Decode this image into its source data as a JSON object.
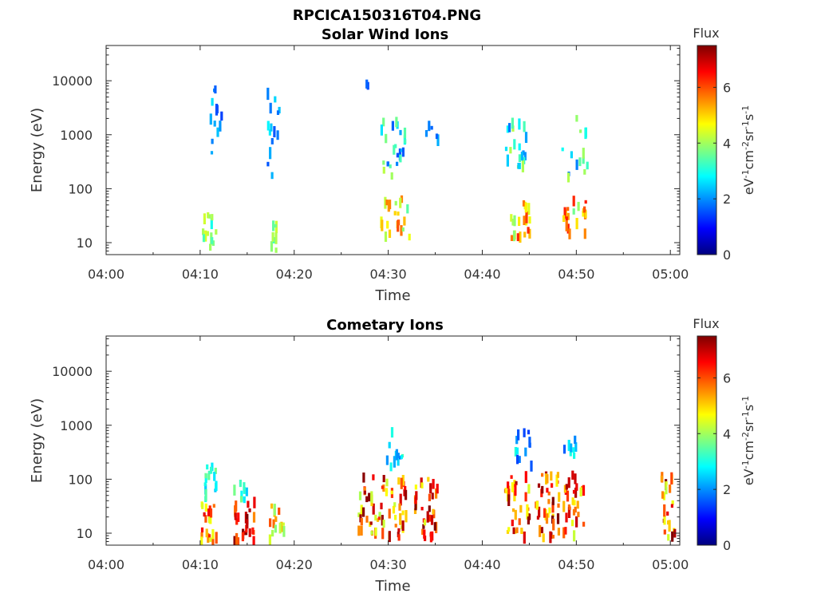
{
  "figure_title": "RPCICA150316T04.PNG",
  "colormap": [
    "#00007f",
    "#0000ff",
    "#007fff",
    "#00ffff",
    "#7fff7f",
    "#ffff00",
    "#ff7f00",
    "#ff0000",
    "#7f0000"
  ],
  "chart_data": [
    {
      "type": "heatmap",
      "title": "Solar Wind Ions",
      "xlabel": "Time",
      "ylabel": "Energy (eV)",
      "yscale": "log",
      "xlim_minutes": [
        0,
        61
      ],
      "ylim": [
        6,
        45000
      ],
      "x_tick_labels": [
        "04:00",
        "04:10",
        "04:20",
        "04:30",
        "04:40",
        "04:50",
        "05:00"
      ],
      "y_tick_labels": [
        "10",
        "100",
        "1000",
        "10000"
      ],
      "colorbar": {
        "title": "Flux",
        "label": "eV-1cm-2sr-1s-1",
        "range": [
          0,
          7.5
        ],
        "tick_labels": [
          "0",
          "2",
          "4",
          "6"
        ]
      },
      "grid": false,
      "clusters": [
        {
          "t": 10.8,
          "t_span": 1.6,
          "e_min": 7,
          "e_max": 40,
          "flux_min": 2.6,
          "flux_max": 4.6,
          "count": 14
        },
        {
          "t": 11.5,
          "t_span": 1.6,
          "e_min": 300,
          "e_max": 8000,
          "flux_min": 1.4,
          "flux_max": 2.6,
          "count": 12
        },
        {
          "t": 17.8,
          "t_span": 0.8,
          "e_min": 6,
          "e_max": 25,
          "flux_min": 3.2,
          "flux_max": 4.6,
          "count": 8
        },
        {
          "t": 17.8,
          "t_span": 1.8,
          "e_min": 170,
          "e_max": 9000,
          "flux_min": 1.4,
          "flux_max": 2.8,
          "count": 14
        },
        {
          "t": 27.6,
          "t_span": 0.4,
          "e_min": 8000,
          "e_max": 10000,
          "flux_min": 1.4,
          "flux_max": 1.8,
          "count": 2
        },
        {
          "t": 30.6,
          "t_span": 3.2,
          "e_min": 12,
          "e_max": 65,
          "flux_min": 3.4,
          "flux_max": 6.2,
          "count": 22
        },
        {
          "t": 30.4,
          "t_span": 2.6,
          "e_min": 150,
          "e_max": 1800,
          "flux_min": 1.5,
          "flux_max": 4.2,
          "count": 24
        },
        {
          "t": 34.6,
          "t_span": 1.4,
          "e_min": 700,
          "e_max": 3200,
          "flux_min": 1.6,
          "flux_max": 2.8,
          "count": 5
        },
        {
          "t": 43.8,
          "t_span": 2.4,
          "e_min": 12,
          "e_max": 60,
          "flux_min": 3.4,
          "flux_max": 6.4,
          "count": 20
        },
        {
          "t": 43.6,
          "t_span": 2.4,
          "e_min": 250,
          "e_max": 2000,
          "flux_min": 1.5,
          "flux_max": 4.4,
          "count": 22
        },
        {
          "t": 49.6,
          "t_span": 2.6,
          "e_min": 12,
          "e_max": 60,
          "flux_min": 3.6,
          "flux_max": 6.6,
          "count": 20
        },
        {
          "t": 49.8,
          "t_span": 2.8,
          "e_min": 150,
          "e_max": 2200,
          "flux_min": 1.6,
          "flux_max": 4.2,
          "count": 14
        }
      ]
    },
    {
      "type": "heatmap",
      "title": "Cometary Ions",
      "xlabel": "Time",
      "ylabel": "Energy (eV)",
      "yscale": "log",
      "xlim_minutes": [
        0,
        61
      ],
      "ylim": [
        6,
        45000
      ],
      "x_tick_labels": [
        "04:00",
        "04:10",
        "04:20",
        "04:30",
        "04:40",
        "04:50",
        "05:00"
      ],
      "y_tick_labels": [
        "10",
        "100",
        "1000",
        "10000"
      ],
      "colorbar": {
        "title": "Flux",
        "label": "eV-1cm-2sr-1s-1",
        "range": [
          0,
          7.5
        ],
        "tick_labels": [
          "0",
          "2",
          "4",
          "6"
        ]
      },
      "grid": false,
      "clusters": [
        {
          "t": 10.9,
          "t_span": 1.8,
          "e_min": 6,
          "e_max": 40,
          "flux_min": 4.4,
          "flux_max": 7.0,
          "count": 22
        },
        {
          "t": 10.9,
          "t_span": 1.4,
          "e_min": 40,
          "e_max": 200,
          "flux_min": 2.3,
          "flux_max": 3.8,
          "count": 16
        },
        {
          "t": 14.6,
          "t_span": 2.2,
          "e_min": 6,
          "e_max": 40,
          "flux_min": 5.4,
          "flux_max": 7.6,
          "count": 26
        },
        {
          "t": 14.3,
          "t_span": 1.6,
          "e_min": 40,
          "e_max": 90,
          "flux_min": 2.4,
          "flux_max": 3.8,
          "count": 8
        },
        {
          "t": 18.0,
          "t_span": 1.8,
          "e_min": 6,
          "e_max": 35,
          "flux_min": 3.8,
          "flux_max": 6.2,
          "count": 14
        },
        {
          "t": 28.0,
          "t_span": 3.0,
          "e_min": 8,
          "e_max": 120,
          "flux_min": 4.0,
          "flux_max": 7.6,
          "count": 36
        },
        {
          "t": 30.7,
          "t_span": 2.2,
          "e_min": 8,
          "e_max": 100,
          "flux_min": 4.2,
          "flux_max": 7.4,
          "count": 30
        },
        {
          "t": 33.8,
          "t_span": 2.6,
          "e_min": 8,
          "e_max": 110,
          "flux_min": 4.4,
          "flux_max": 7.6,
          "count": 34
        },
        {
          "t": 30.6,
          "t_span": 2.6,
          "e_min": 130,
          "e_max": 900,
          "flux_min": 1.5,
          "flux_max": 3.4,
          "count": 12
        },
        {
          "t": 43.6,
          "t_span": 2.8,
          "e_min": 8,
          "e_max": 120,
          "flux_min": 4.2,
          "flux_max": 7.4,
          "count": 34
        },
        {
          "t": 46.8,
          "t_span": 2.6,
          "e_min": 8,
          "e_max": 140,
          "flux_min": 4.6,
          "flux_max": 7.8,
          "count": 40
        },
        {
          "t": 49.6,
          "t_span": 2.2,
          "e_min": 8,
          "e_max": 120,
          "flux_min": 4.2,
          "flux_max": 7.2,
          "count": 30
        },
        {
          "t": 44.2,
          "t_span": 1.8,
          "e_min": 150,
          "e_max": 800,
          "flux_min": 1.4,
          "flux_max": 3.4,
          "count": 12
        },
        {
          "t": 49.2,
          "t_span": 1.6,
          "e_min": 150,
          "e_max": 650,
          "flux_min": 1.6,
          "flux_max": 3.4,
          "count": 8
        },
        {
          "t": 59.6,
          "t_span": 1.6,
          "e_min": 8,
          "e_max": 160,
          "flux_min": 4.2,
          "flux_max": 7.6,
          "count": 24
        }
      ]
    }
  ]
}
